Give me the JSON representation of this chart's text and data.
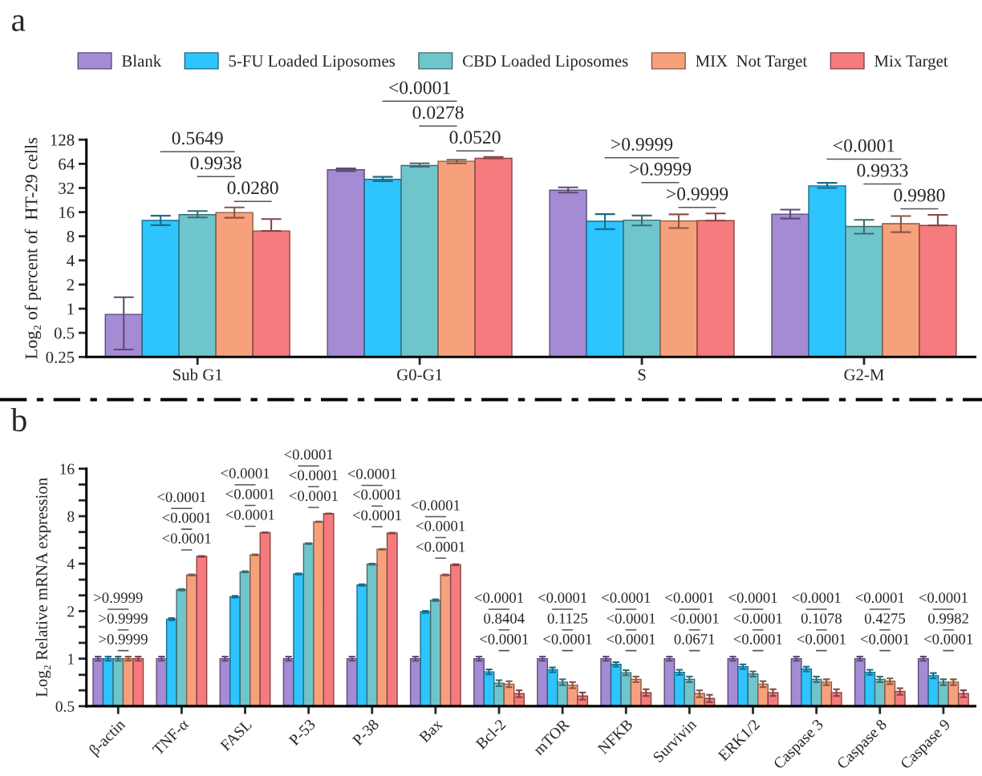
{
  "chart_data": [
    {
      "type": "bar",
      "title": "a",
      "ylabel": "Log₂ of percent of  HT-29 cells",
      "log": "y",
      "legend": "top",
      "grid": false,
      "categories": [
        "Sub G1",
        "G0-G1",
        "S",
        "G2-M"
      ],
      "ylim": [
        0.25,
        128
      ],
      "yticks": [
        0.25,
        0.5,
        1,
        2,
        4,
        8,
        16,
        32,
        64,
        128
      ],
      "series": [
        {
          "name": "Blank",
          "color": "#a58ad4",
          "values": [
            0.85,
            54,
            30,
            15.1
          ],
          "errors": [
            [
              0.31,
              1.39
            ],
            [
              52,
              56
            ],
            [
              28,
              32.5
            ],
            [
              13.3,
              17.2
            ]
          ]
        },
        {
          "name": "5-FU Loaded Liposomes",
          "color": "#2ec4fd",
          "values": [
            12.6,
            41,
            12.3,
            34
          ],
          "errors": [
            [
              11.0,
              14.4
            ],
            [
              39,
              44
            ],
            [
              9.8,
              15.1
            ],
            [
              32,
              37
            ]
          ]
        },
        {
          "name": "CBD Loaded Liposomes",
          "color": "#6fc5cc",
          "values": [
            14.9,
            61,
            12.7,
            10.6
          ],
          "errors": [
            [
              13.7,
              16.5
            ],
            [
              59,
              65
            ],
            [
              10.9,
              14.5
            ],
            [
              8.6,
              12.8
            ]
          ]
        },
        {
          "name": "MIX  Not Target",
          "color": "#f7a17c",
          "values": [
            15.8,
            69,
            12.4,
            11.5
          ],
          "errors": [
            [
              13.6,
              18.3
            ],
            [
              65,
              72
            ],
            [
              10.1,
              15.0
            ],
            [
              9.0,
              14.3
            ]
          ]
        },
        {
          "name": "Mix Target",
          "color": "#f67b7e",
          "values": [
            9.3,
            75,
            12.5,
            10.9
          ],
          "errors": [
            [
              9.3,
              13.1
            ],
            [
              75,
              78
            ],
            [
              12.5,
              15.4
            ],
            [
              10.9,
              14.8
            ]
          ]
        }
      ],
      "annotations": [
        "0.0280",
        "0.9938",
        "0.5649",
        "0.0520",
        "0.0278",
        "<0.0001",
        ">0.9999",
        ">0.9999",
        ">0.9999",
        "0.9980",
        "0.9933",
        "<0.0001"
      ]
    },
    {
      "type": "bar",
      "title": "b",
      "ylabel": "Log₂ Relative mRNA expression",
      "log": "y",
      "grid": false,
      "categories": [
        "β-actin",
        "TNF-α",
        "FASL",
        "P-53",
        "P-38",
        "Bax",
        "Bcl-2",
        "mTOR",
        "NFKB",
        "Survivin",
        "ERK1/2",
        "Caspase 3",
        "Caspase 8",
        "Caspase 9"
      ],
      "ylim": [
        0.5,
        16
      ],
      "yticks": [
        0.5,
        {
          "value": 0.63,
          "label": null
        },
        {
          "value": 0.79,
          "label": null
        },
        1,
        {
          "value": 1.26,
          "label": null
        },
        {
          "value": 1.59,
          "label": null
        },
        2,
        {
          "value": 2.52,
          "label": null
        },
        {
          "value": 3.17,
          "label": null
        },
        4,
        {
          "value": 5.04,
          "label": null
        },
        {
          "value": 6.35,
          "label": null
        },
        8,
        {
          "value": 10.08,
          "label": null
        },
        {
          "value": 12.7,
          "label": null
        },
        16
      ],
      "series": [
        {
          "color": "#a58ad4",
          "values": [
            1,
            1,
            1,
            1,
            1,
            1,
            1,
            1,
            1,
            1,
            1,
            1,
            1,
            1
          ],
          "errors": [
            0.03,
            0.03,
            0.03,
            0.03,
            0.03,
            0.03,
            0.03,
            0.03,
            0.03,
            0.03,
            0.03,
            0.03,
            0.03,
            0.03
          ]
        },
        {
          "color": "#2ec4fd",
          "values": [
            1,
            1.78,
            2.47,
            3.44,
            2.93,
            1.98,
            0.825,
            0.85,
            0.92,
            0.82,
            0.89,
            0.86,
            0.82,
            0.78
          ],
          "errors": [
            0.03,
            0.03,
            0.03,
            0.03,
            0.03,
            0.03,
            0.03,
            0.03,
            0.03,
            0.03,
            0.03,
            0.03,
            0.03,
            0.03
          ]
        },
        {
          "color": "#6fc5cc",
          "values": [
            1,
            2.73,
            3.55,
            5.36,
            3.97,
            2.35,
            0.7,
            0.71,
            0.815,
            0.74,
            0.8,
            0.74,
            0.74,
            0.71
          ],
          "errors": [
            0.03,
            0.03,
            0.03,
            0.03,
            0.03,
            0.03,
            0.03,
            0.03,
            0.03,
            0.03,
            0.03,
            0.03,
            0.03,
            0.03
          ]
        },
        {
          "color": "#f7a17c",
          "values": [
            1,
            3.39,
            4.55,
            7.37,
            4.93,
            3.39,
            0.69,
            0.68,
            0.74,
            0.6,
            0.69,
            0.71,
            0.72,
            0.71
          ],
          "errors": [
            0.03,
            0.03,
            0.03,
            0.03,
            0.03,
            0.03,
            0.03,
            0.03,
            0.03,
            0.03,
            0.03,
            0.03,
            0.03,
            0.03
          ]
        },
        {
          "color": "#f67b7e",
          "values": [
            1,
            4.45,
            6.3,
            8.3,
            6.25,
            3.94,
            0.6,
            0.58,
            0.61,
            0.56,
            0.61,
            0.61,
            0.62,
            0.6
          ],
          "errors": [
            0.03,
            0.03,
            0.03,
            0.03,
            0.03,
            0.03,
            0.03,
            0.03,
            0.03,
            0.03,
            0.03,
            0.03,
            0.03,
            0.03
          ]
        }
      ],
      "annotations": [
        ">0.9999",
        ">0.9999",
        ">0.9999",
        "<0.0001",
        "<0.0001",
        "<0.0001",
        "<0.0001",
        "<0.0001",
        "<0.0001",
        "<0.0001",
        "<0.0001",
        "<0.0001",
        "<0.0001",
        "<0.0001",
        "<0.0001",
        "<0.0001",
        "<0.0001",
        "<0.0001",
        "<0.0001",
        "0.8404",
        "<0.0001",
        "<0.0001",
        "0.1125",
        "<0.0001",
        "<0.0001",
        "<0.0001",
        "<0.0001",
        "0.0671",
        "<0.0001",
        "<0.0001",
        "<0.0001",
        "<0.0001",
        "<0.0001",
        "<0.0001",
        "0.1078",
        "<0.0001",
        "<0.0001",
        "0.4275",
        "<0.0001",
        "<0.0001",
        "0.9982",
        "<0.0001"
      ]
    }
  ]
}
